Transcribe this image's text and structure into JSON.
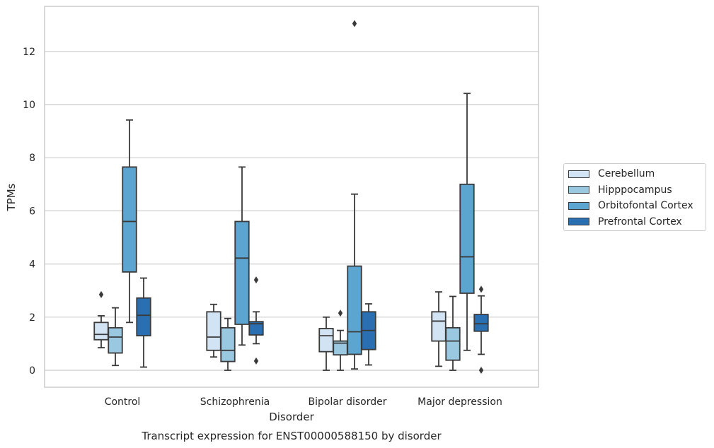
{
  "chart_data": {
    "type": "box",
    "title": "Transcript expression for ENST00000588150 by disorder",
    "xlabel": "Disorder",
    "ylabel": "TPMs",
    "ylim": [
      -0.62,
      13.4
    ],
    "yticks": [
      0,
      2,
      4,
      6,
      8,
      10,
      12
    ],
    "grid": true,
    "legend_position": "right",
    "categories": [
      "Control",
      "Schizophrenia",
      "Bipolar disorder",
      "Major depression"
    ],
    "series": [
      {
        "name": "Cerebellum",
        "color": "#d2e3f3",
        "boxes": [
          {
            "whislo": 0.85,
            "q1": 1.15,
            "med": 1.35,
            "q3": 1.8,
            "whishi": 2.05,
            "fliers": [
              2.85
            ]
          },
          {
            "whislo": 0.5,
            "q1": 0.75,
            "med": 1.25,
            "q3": 2.2,
            "whishi": 2.48,
            "fliers": []
          },
          {
            "whislo": 0.0,
            "q1": 0.7,
            "med": 1.3,
            "q3": 1.57,
            "whishi": 2.0,
            "fliers": []
          },
          {
            "whislo": 0.15,
            "q1": 1.1,
            "med": 1.85,
            "q3": 2.2,
            "whishi": 2.95,
            "fliers": []
          }
        ]
      },
      {
        "name": "Hipppocampus",
        "color": "#9ac8e0",
        "boxes": [
          {
            "whislo": 0.18,
            "q1": 0.65,
            "med": 1.25,
            "q3": 1.6,
            "whishi": 2.35,
            "fliers": []
          },
          {
            "whislo": 0.0,
            "q1": 0.33,
            "med": 0.75,
            "q3": 1.6,
            "whishi": 1.95,
            "fliers": []
          },
          {
            "whislo": 0.0,
            "q1": 0.58,
            "med": 1.02,
            "q3": 1.1,
            "whishi": 1.5,
            "fliers": [
              2.15
            ]
          },
          {
            "whislo": 0.0,
            "q1": 0.38,
            "med": 1.1,
            "q3": 1.6,
            "whishi": 2.78,
            "fliers": []
          }
        ]
      },
      {
        "name": "Orbitofontal Cortex",
        "color": "#5da5d1",
        "boxes": [
          {
            "whislo": 1.8,
            "q1": 3.7,
            "med": 5.6,
            "q3": 7.65,
            "whishi": 9.42,
            "fliers": []
          },
          {
            "whislo": 0.95,
            "q1": 1.73,
            "med": 4.22,
            "q3": 5.6,
            "whishi": 7.65,
            "fliers": []
          },
          {
            "whislo": 0.05,
            "q1": 0.6,
            "med": 1.45,
            "q3": 3.92,
            "whishi": 6.63,
            "fliers": [
              13.05
            ]
          },
          {
            "whislo": 0.75,
            "q1": 2.9,
            "med": 4.27,
            "q3": 7.0,
            "whishi": 10.42,
            "fliers": []
          }
        ]
      },
      {
        "name": "Prefrontal Cortex",
        "color": "#2a6fb2",
        "boxes": [
          {
            "whislo": 0.12,
            "q1": 1.3,
            "med": 2.07,
            "q3": 2.72,
            "whishi": 3.47,
            "fliers": []
          },
          {
            "whislo": 1.0,
            "q1": 1.33,
            "med": 1.75,
            "q3": 1.83,
            "whishi": 2.2,
            "fliers": [
              3.4,
              0.35
            ]
          },
          {
            "whislo": 0.2,
            "q1": 0.78,
            "med": 1.5,
            "q3": 2.2,
            "whishi": 2.5,
            "fliers": []
          },
          {
            "whislo": 0.6,
            "q1": 1.47,
            "med": 1.75,
            "q3": 2.1,
            "whishi": 2.8,
            "fliers": [
              3.05,
              0.0
            ]
          }
        ]
      }
    ]
  }
}
